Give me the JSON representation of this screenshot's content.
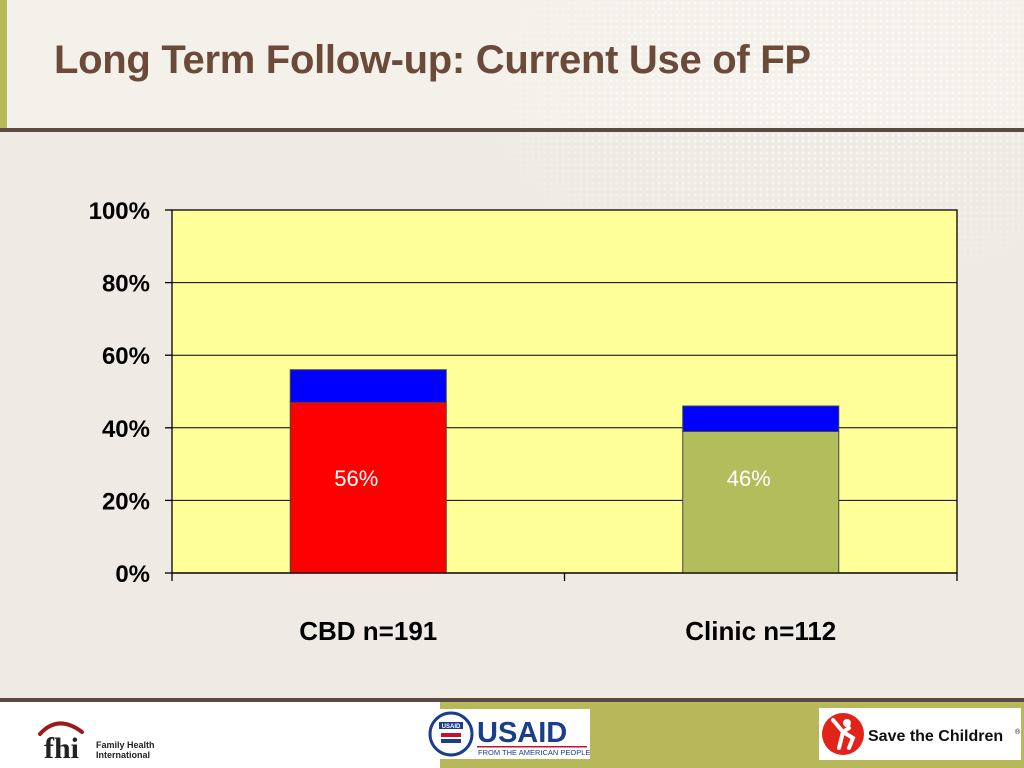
{
  "slide": {
    "title": "Long Term Follow-up:  Current Use of FP"
  },
  "chart_data": {
    "type": "bar",
    "stacked": true,
    "categories": [
      "CBD n=191",
      "Clinic n=112"
    ],
    "series": [
      {
        "values": [
          47,
          39
        ],
        "colors": [
          "#ff0000",
          "#b2be5c"
        ]
      },
      {
        "values": [
          9,
          7
        ],
        "colors": [
          "#0000ff",
          "#0000ff"
        ]
      }
    ],
    "data_labels": [
      "56%",
      "46%"
    ],
    "ylim": [
      0,
      100
    ],
    "yticks": [
      0,
      20,
      40,
      60,
      80,
      100
    ],
    "ytick_labels": [
      "0%",
      "20%",
      "40%",
      "60%",
      "80%",
      "100%"
    ],
    "plot_background": "#ffff99",
    "grid": true,
    "legend": "none"
  },
  "footer": {
    "fhi_logo": {
      "mark": "fhi",
      "text_line1": "Family Health",
      "text_line2": "International"
    },
    "usaid_logo": {
      "name": "USAID",
      "tagline": "FROM THE AMERICAN PEOPLE",
      "seal_text": "USAID"
    },
    "stc_logo": {
      "name": "Save the Children",
      "reg_mark": "®"
    }
  },
  "colors": {
    "title": "#6b4a3a",
    "rule": "#5b4a42",
    "accent_green": "#b7b85a",
    "usaid_blue": "#1a3e8c",
    "usaid_red": "#c8102e",
    "stc_red": "#e2231a"
  }
}
